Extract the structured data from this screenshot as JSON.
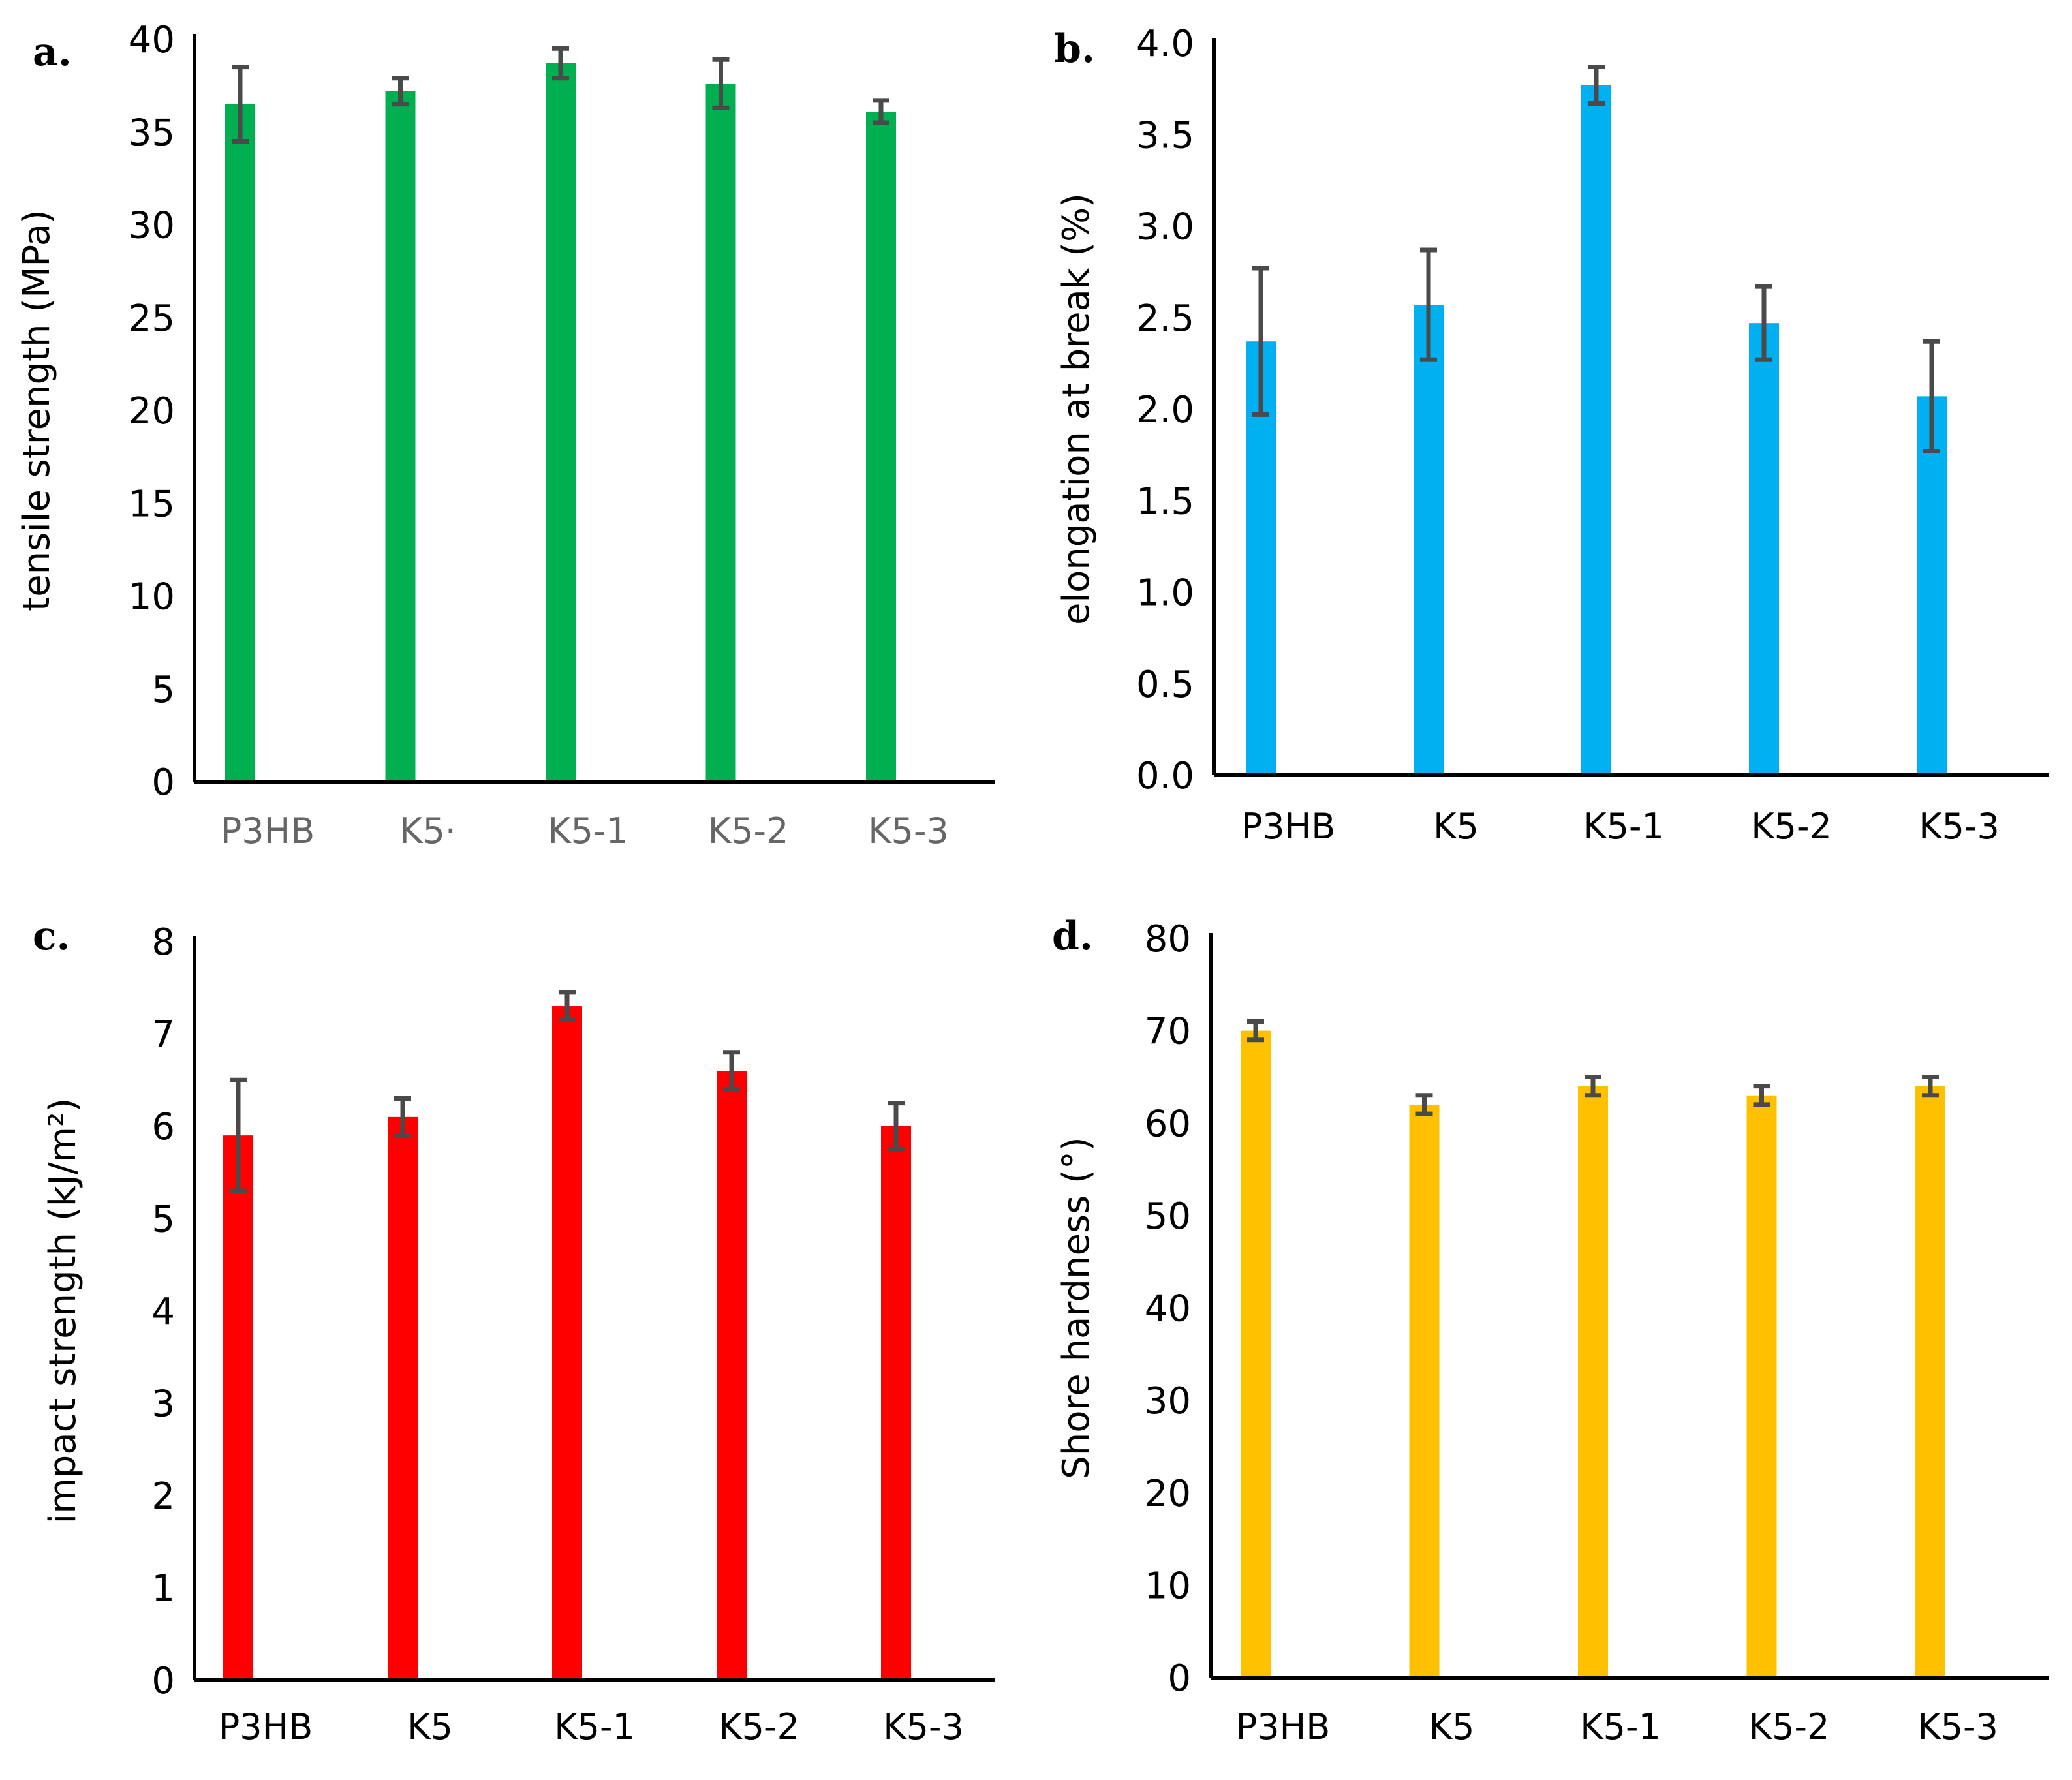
{
  "chart_data": [
    {
      "type": "bar",
      "panel": "a.",
      "categories": [
        "P3HB",
        "K5·",
        "K5-1",
        "K5-2",
        "K5-3"
      ],
      "category_color": "#666666",
      "values": [
        36.5,
        37.2,
        38.7,
        37.6,
        36.1
      ],
      "errors": [
        2.0,
        0.7,
        0.8,
        1.3,
        0.6
      ],
      "ylabel": "tensile strength  (MPa)",
      "ylim": [
        0,
        40
      ],
      "yticks": [
        "0",
        "5",
        "10",
        "15",
        "20",
        "25",
        "30",
        "35",
        "40"
      ],
      "color": "#00b050",
      "grid": false
    },
    {
      "type": "bar",
      "panel": "b.",
      "categories": [
        "P3HB",
        "K5",
        "K5-1",
        "K5-2",
        "K5-3"
      ],
      "category_color": "#000000",
      "values": [
        2.37,
        2.57,
        3.77,
        2.47,
        2.07
      ],
      "errors": [
        0.4,
        0.3,
        0.1,
        0.2,
        0.3
      ],
      "ylabel": "elongation at break (%)",
      "ylim": [
        0,
        4
      ],
      "yticks": [
        "0.0",
        "0.5",
        "1.0",
        "1.5",
        "2.0",
        "2.5",
        "3.0",
        "3.5",
        "4.0"
      ],
      "color": "#00b0f0",
      "grid": false
    },
    {
      "type": "bar",
      "panel": "c.",
      "categories": [
        "P3HB",
        "K5",
        "K5-1",
        "K5-2",
        "K5-3"
      ],
      "category_color": "#000000",
      "values": [
        5.9,
        6.1,
        7.3,
        6.6,
        6.0
      ],
      "errors": [
        0.6,
        0.2,
        0.15,
        0.2,
        0.25
      ],
      "ylabel": "impact strength  (kJ/m²)",
      "ylim": [
        0,
        8
      ],
      "yticks": [
        "0",
        "1",
        "2",
        "3",
        "4",
        "5",
        "6",
        "7",
        "8"
      ],
      "color": "#ff0000",
      "grid": false
    },
    {
      "type": "bar",
      "panel": "d.",
      "categories": [
        "P3HB",
        "K5",
        "K5-1",
        "K5-2",
        "K5-3"
      ],
      "category_color": "#000000",
      "values": [
        70,
        62,
        64,
        63,
        64
      ],
      "errors": [
        1,
        1,
        1,
        1,
        1
      ],
      "ylabel": "Shore hardness  (°)",
      "ylim": [
        0,
        80
      ],
      "yticks": [
        "0",
        "10",
        "20",
        "30",
        "40",
        "50",
        "60",
        "70",
        "80"
      ],
      "color": "#ffc000",
      "grid": false
    }
  ]
}
